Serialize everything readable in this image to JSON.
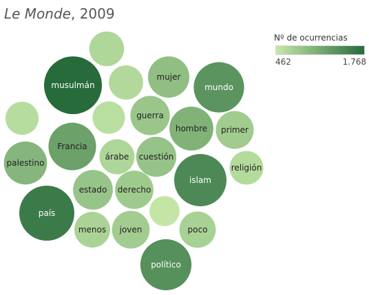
{
  "title": {
    "italic": "Le Monde",
    "rest": ", 2009"
  },
  "legend": {
    "title": "Nº de ocurrencias",
    "min_label": "462",
    "max_label": "1.768",
    "color_low": "#c5e8a8",
    "color_high": "#276b3b"
  },
  "chart_data": {
    "type": "packed-bubble",
    "size_measure": "Nº de ocurrencias",
    "color_measure": "Nº de ocurrencias",
    "value_range": [
      462,
      1768
    ],
    "bubbles": [
      {
        "label": "musulmán",
        "value": 1768
      },
      {
        "label": "país",
        "value": 1600
      },
      {
        "label": "islam",
        "value": 1450
      },
      {
        "label": "político",
        "value": 1380
      },
      {
        "label": "mundo",
        "value": 1340
      },
      {
        "label": "Francia",
        "value": 1200
      },
      {
        "label": "hombre",
        "value": 1020
      },
      {
        "label": "palestino",
        "value": 980
      },
      {
        "label": "mujer",
        "value": 900
      },
      {
        "label": "cuestión",
        "value": 850
      },
      {
        "label": "estado",
        "value": 840
      },
      {
        "label": "guerra",
        "value": 820
      },
      {
        "label": "derecho",
        "value": 780
      },
      {
        "label": "primer",
        "value": 760
      },
      {
        "label": "joven",
        "value": 750
      },
      {
        "label": "poco",
        "value": 700
      },
      {
        "label": "menos",
        "value": 680
      },
      {
        "label": "árabe",
        "value": 650
      },
      {
        "label": "religión",
        "value": 600
      },
      {
        "label": "",
        "value": 640
      },
      {
        "label": "",
        "value": 620
      },
      {
        "label": "",
        "value": 580
      },
      {
        "label": "",
        "value": 560
      },
      {
        "label": "",
        "value": 480
      }
    ]
  }
}
